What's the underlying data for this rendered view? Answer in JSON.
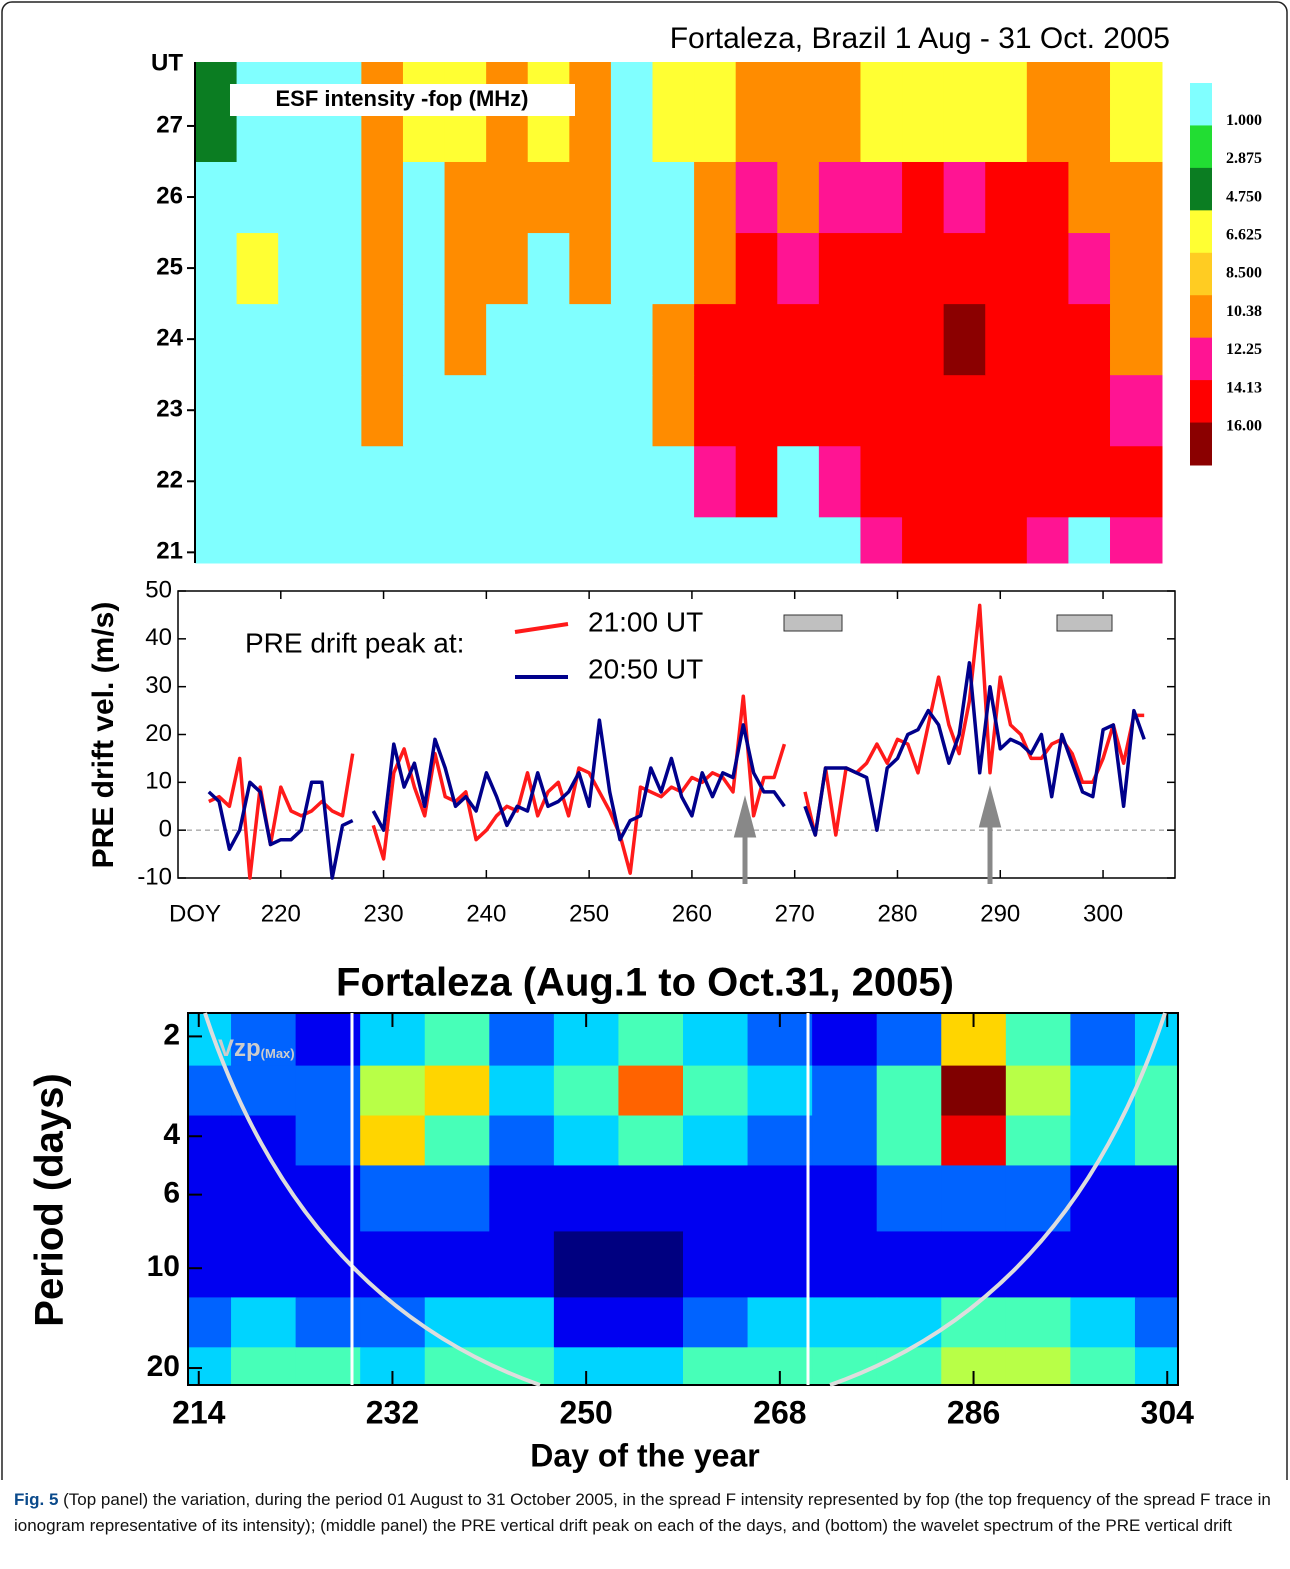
{
  "chart_data": [
    {
      "type": "heatmap",
      "title": "Fortaleza, Brazil 1 Aug - 31 Oct. 2005",
      "annotation": "ESF intensity -fop (MHz)",
      "y_label": "UT",
      "x": [
        214,
        218,
        222,
        226,
        230,
        234,
        238,
        242,
        246,
        250,
        254,
        258,
        262,
        266,
        270,
        274,
        278,
        282,
        286,
        290,
        294,
        298,
        302
      ],
      "y": [
        21,
        22,
        23,
        24,
        25,
        26,
        27
      ],
      "values": [
        [
          1,
          1,
          1,
          1,
          1,
          1,
          1,
          1,
          1,
          1,
          1,
          1,
          1,
          1,
          1,
          1,
          12.25,
          14.13,
          14.13,
          14.13,
          12.25,
          1,
          12.25
        ],
        [
          1,
          1,
          1,
          1,
          1,
          1,
          1,
          1,
          1,
          1,
          1,
          1,
          12.25,
          14.13,
          1,
          12.25,
          14.13,
          14.13,
          14.13,
          14.13,
          14.13,
          14.13,
          14.13
        ],
        [
          1,
          1,
          1,
          1,
          10.38,
          1,
          1,
          1,
          1,
          1,
          1,
          10.38,
          14.13,
          14.13,
          14.13,
          14.13,
          14.13,
          14.13,
          14.13,
          14.13,
          14.13,
          14.13,
          12.25
        ],
        [
          1,
          1,
          1,
          1,
          10.38,
          1,
          10.38,
          1,
          1,
          1,
          1,
          10.38,
          14.13,
          14.13,
          14.13,
          14.13,
          14.13,
          14.13,
          16,
          14.13,
          14.13,
          14.13,
          10.38
        ],
        [
          1,
          6.625,
          1,
          1,
          10.38,
          1,
          10.38,
          10.38,
          1,
          10.38,
          1,
          1,
          10.38,
          14.13,
          12.25,
          14.13,
          14.13,
          14.13,
          14.13,
          14.13,
          14.13,
          12.25,
          10.38
        ],
        [
          1,
          1,
          1,
          1,
          10.38,
          1,
          10.38,
          10.38,
          10.38,
          10.38,
          1,
          1,
          10.38,
          12.25,
          10.38,
          12.25,
          12.25,
          14.13,
          12.25,
          14.13,
          14.13,
          10.38,
          10.38
        ],
        [
          4.75,
          1,
          1,
          1,
          10.38,
          6.625,
          6.625,
          10.38,
          6.625,
          10.38,
          1,
          6.625,
          6.625,
          10.38,
          10.38,
          10.38,
          6.625,
          6.625,
          6.625,
          6.625,
          10.38,
          10.38,
          6.625
        ]
      ],
      "xlim": [
        212,
        305
      ],
      "ylim": [
        20.85,
        27.9
      ],
      "yticks": [
        21,
        22,
        23,
        24,
        25,
        26,
        27
      ],
      "colorbar": {
        "ticks": [
          {
            "value": 1,
            "label": "1.000"
          },
          {
            "value": 2.875,
            "label": "2.875"
          },
          {
            "value": 4.75,
            "label": "4.750"
          },
          {
            "value": 6.625,
            "label": "6.625"
          },
          {
            "value": 8.5,
            "label": "8.500"
          },
          {
            "value": 10.38,
            "label": "10.38"
          },
          {
            "value": 12.25,
            "label": "12.25"
          },
          {
            "value": 14.13,
            "label": "14.13"
          },
          {
            "value": 16,
            "label": "16.00"
          }
        ],
        "colors": [
          "#80ffff",
          "#22dd33",
          "#0b7d22",
          "#ffff33",
          "#ffcc22",
          "#ff8c00",
          "#ff1493",
          "#ff0000",
          "#8b0000"
        ]
      }
    },
    {
      "type": "line",
      "y_label": "PRE  drift vel. (m/s)",
      "x_label": "DOY",
      "legend_title": "PRE drift peak at:",
      "x": [
        213,
        214,
        215,
        216,
        217,
        218,
        219,
        220,
        221,
        222,
        223,
        224,
        225,
        226,
        227,
        228,
        229,
        230,
        231,
        232,
        233,
        234,
        235,
        236,
        237,
        238,
        239,
        240,
        241,
        242,
        243,
        244,
        245,
        246,
        247,
        248,
        249,
        250,
        251,
        252,
        253,
        254,
        255,
        256,
        257,
        258,
        259,
        260,
        261,
        262,
        263,
        264,
        265,
        266,
        267,
        268,
        269,
        270,
        271,
        272,
        273,
        274,
        275,
        276,
        277,
        278,
        279,
        280,
        281,
        282,
        283,
        284,
        285,
        286,
        287,
        288,
        289,
        290,
        291,
        292,
        293,
        294,
        295,
        296,
        297,
        298,
        299,
        300,
        301,
        302,
        303,
        304
      ],
      "series": [
        {
          "name": "21:00 UT",
          "color": "#ff1a1a",
          "values": [
            6,
            7,
            5,
            15,
            -10,
            9,
            -3,
            9,
            4,
            3,
            4,
            6,
            4,
            3,
            16,
            null,
            1,
            -6,
            12,
            17,
            9,
            3,
            16,
            7,
            6,
            8,
            -2,
            0,
            3,
            5,
            4,
            12,
            3,
            8,
            10,
            3,
            13,
            12,
            8,
            4,
            -1,
            -9,
            9,
            8,
            7,
            9,
            8,
            11,
            10,
            12,
            11,
            8,
            28,
            3,
            11,
            11,
            18,
            null,
            8,
            -1,
            13,
            -1,
            13,
            12,
            14,
            18,
            14,
            19,
            18,
            12,
            22,
            32,
            22,
            16,
            27,
            47,
            12,
            32,
            22,
            20,
            15,
            15,
            18,
            19,
            16,
            10,
            10,
            15,
            22,
            14,
            24,
            24
          ]
        },
        {
          "name": "20:50 UT",
          "color": "#00008b",
          "values": [
            8,
            6,
            -4,
            0,
            10,
            8,
            -3,
            -2,
            -2,
            0,
            10,
            10,
            -10,
            1,
            2,
            null,
            4,
            0,
            18,
            9,
            14,
            5,
            19,
            13,
            5,
            7,
            4,
            12,
            7,
            1,
            5,
            4,
            12,
            5,
            6,
            8,
            12,
            5,
            23,
            8,
            -2,
            2,
            3,
            13,
            8,
            15,
            7,
            3,
            12,
            7,
            12,
            11,
            22,
            12,
            8,
            8,
            5,
            null,
            5,
            -1,
            13,
            13,
            13,
            12,
            11,
            0,
            13,
            15,
            20,
            21,
            25,
            22,
            14,
            20,
            35,
            12,
            30,
            17,
            19,
            18,
            16,
            20,
            7,
            20,
            14,
            8,
            7,
            21,
            22,
            5,
            25,
            19
          ]
        }
      ],
      "xlim": [
        210,
        307
      ],
      "ylim": [
        -10,
        50
      ],
      "xticks": [
        220,
        230,
        240,
        250,
        260,
        270,
        280,
        290,
        300
      ],
      "yticks": [
        -10,
        0,
        10,
        20,
        30,
        40,
        50
      ],
      "zero_line": true
    },
    {
      "type": "wavelet",
      "title": "Fortaleza (Aug.1 to Oct.31, 2005)",
      "annotation": "Vzp",
      "annotation_sub": "(Max)",
      "x_label": "Day of the year",
      "y_label": "Period (days)",
      "x": [
        214,
        220,
        226,
        232,
        238,
        244,
        250,
        256,
        262,
        268,
        274,
        280,
        286,
        292,
        298,
        304
      ],
      "y": [
        2,
        3,
        4,
        6,
        10,
        15,
        20
      ],
      "values": [
        [
          3,
          2,
          1,
          3,
          4,
          2,
          3,
          4,
          3,
          2,
          1,
          2,
          6,
          4,
          2,
          3
        ],
        [
          2,
          2,
          2,
          5,
          6,
          3,
          4,
          7,
          4,
          3,
          2,
          4,
          9,
          5,
          3,
          4
        ],
        [
          1,
          1,
          2,
          6,
          4,
          2,
          3,
          4,
          3,
          2,
          2,
          4,
          8,
          4,
          3,
          4
        ],
        [
          1,
          1,
          1,
          2,
          2,
          1,
          1,
          1,
          1,
          1,
          1,
          2,
          2,
          2,
          1,
          1
        ],
        [
          1,
          1,
          1,
          1,
          1,
          1,
          0,
          0,
          1,
          1,
          1,
          1,
          1,
          1,
          1,
          1
        ],
        [
          2,
          3,
          2,
          2,
          3,
          3,
          1,
          1,
          2,
          3,
          3,
          3,
          4,
          4,
          3,
          2
        ],
        [
          3,
          4,
          4,
          3,
          4,
          4,
          3,
          3,
          4,
          4,
          4,
          4,
          5,
          5,
          4,
          3
        ]
      ],
      "xlim": [
        213,
        305
      ],
      "ylim": [
        1.7,
        22.5
      ],
      "log_y": true,
      "xticks": [
        214,
        232,
        250,
        268,
        286,
        304
      ],
      "yticks": [
        2,
        4,
        6,
        10,
        20
      ]
    }
  ],
  "caption": {
    "label": "Fig. 5",
    "text": "(Top panel) the variation, during the period 01 August to 31 October 2005, in the spread F intensity represented by fop (the top frequency of the spread F trace in ionogram representative of its intensity); (middle panel) the PRE vertical drift peak on each of the days, and (bottom) the wavelet spectrum of the PRE vertical drift"
  }
}
